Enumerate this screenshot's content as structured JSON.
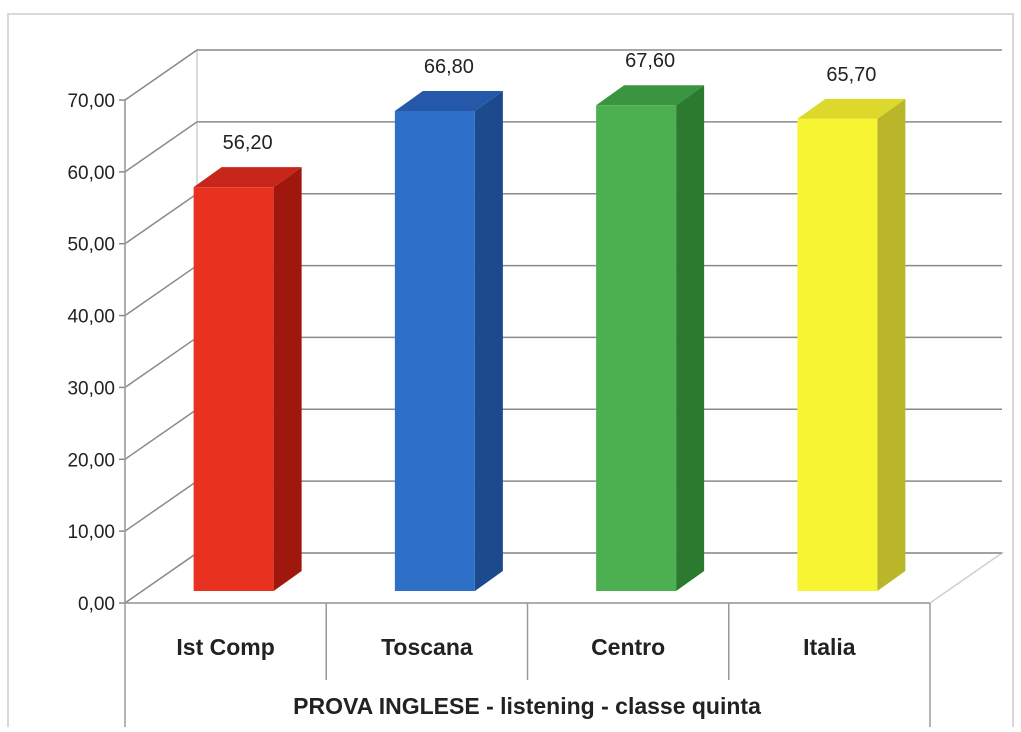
{
  "chart_data": {
    "type": "bar",
    "title": "",
    "xlabel": "PROVA INGLESE - listening - classe quinta",
    "ylabel": "",
    "categories": [
      "Ist Comp",
      "Toscana",
      "Centro",
      "Italia"
    ],
    "series": [
      {
        "values": [
          56.2,
          66.8,
          67.6,
          65.7
        ]
      }
    ],
    "data_labels": [
      "56,20",
      "66,80",
      "67,60",
      "65,70"
    ],
    "ylim": [
      0,
      70
    ],
    "yticks": [
      "0,00",
      "10,00",
      "20,00",
      "30,00",
      "40,00",
      "50,00",
      "60,00",
      "70,00"
    ],
    "grid": true,
    "legend": "none",
    "three_d": true,
    "bar_colors": [
      {
        "front": "#e8321f",
        "side": "#a0170d",
        "top": "#c8261a"
      },
      {
        "front": "#2e6fc8",
        "side": "#1c4a8c",
        "top": "#2558a8"
      },
      {
        "front": "#4caf50",
        "side": "#2b7a30",
        "top": "#3a9440"
      },
      {
        "front": "#f7f531",
        "side": "#b9b62a",
        "top": "#dcd92c"
      }
    ]
  }
}
